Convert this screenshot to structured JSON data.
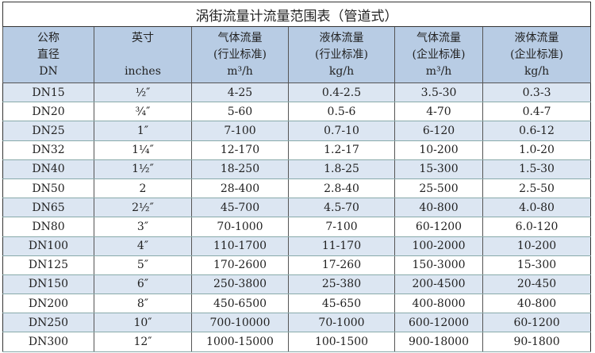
{
  "title": "涡街流量计流量范围表（管道式）",
  "headers": [
    [
      "公称",
      "直径",
      "DN"
    ],
    [
      "英寸",
      "",
      "inches"
    ],
    [
      "气体流量",
      "(行业标准)",
      "m³/h"
    ],
    [
      "液体流量",
      "(行业标准)",
      "kg/h"
    ],
    [
      "气体流量",
      "(企业标准)",
      "m³/h"
    ],
    [
      "液体流量",
      "(企业标准)",
      "kg/h"
    ]
  ],
  "rows": [
    [
      "DN15",
      "½″",
      "4-25",
      "0.4-2.5",
      "3.5-30",
      "0.3-3"
    ],
    [
      "DN20",
      "¾″",
      "5-60",
      "0.5-6",
      "4-70",
      "0.4-7"
    ],
    [
      "DN25",
      "1″",
      "7-100",
      "0.7-10",
      "6-120",
      "0.6-12"
    ],
    [
      "DN32",
      "1¼″",
      "12-170",
      "1.2-17",
      "10-200",
      "1.0-20"
    ],
    [
      "DN40",
      "1½″",
      "18-250",
      "1.8-25",
      "15-300",
      "1.5-30"
    ],
    [
      "DN50",
      "2",
      "28-400",
      "2.8-40",
      "25-500",
      "2.5-50"
    ],
    [
      "DN65",
      "2½″",
      "45-700",
      "4.5-70",
      "40-800",
      "4.0-80"
    ],
    [
      "DN80",
      "3″",
      "70-1000",
      "7-100",
      "60-1200",
      "6.0-120"
    ],
    [
      "DN100",
      "4″",
      "110-1700",
      "11-170",
      "100-2000",
      "10-200"
    ],
    [
      "DN125",
      "5″",
      "170-2600",
      "17-260",
      "150-3000",
      "15-300"
    ],
    [
      "DN150",
      "6″",
      "250-3800",
      "25-380",
      "200-4500",
      "20-450"
    ],
    [
      "DN200",
      "8″",
      "450-6500",
      "45-650",
      "400-8000",
      "40-800"
    ],
    [
      "DN250",
      "10″",
      "700-10000",
      "70-1000",
      "600-12000",
      "60-1200"
    ],
    [
      "DN300",
      "12″",
      "1000-15000",
      "100-1500",
      "900-18000",
      "90-1800"
    ]
  ]
}
